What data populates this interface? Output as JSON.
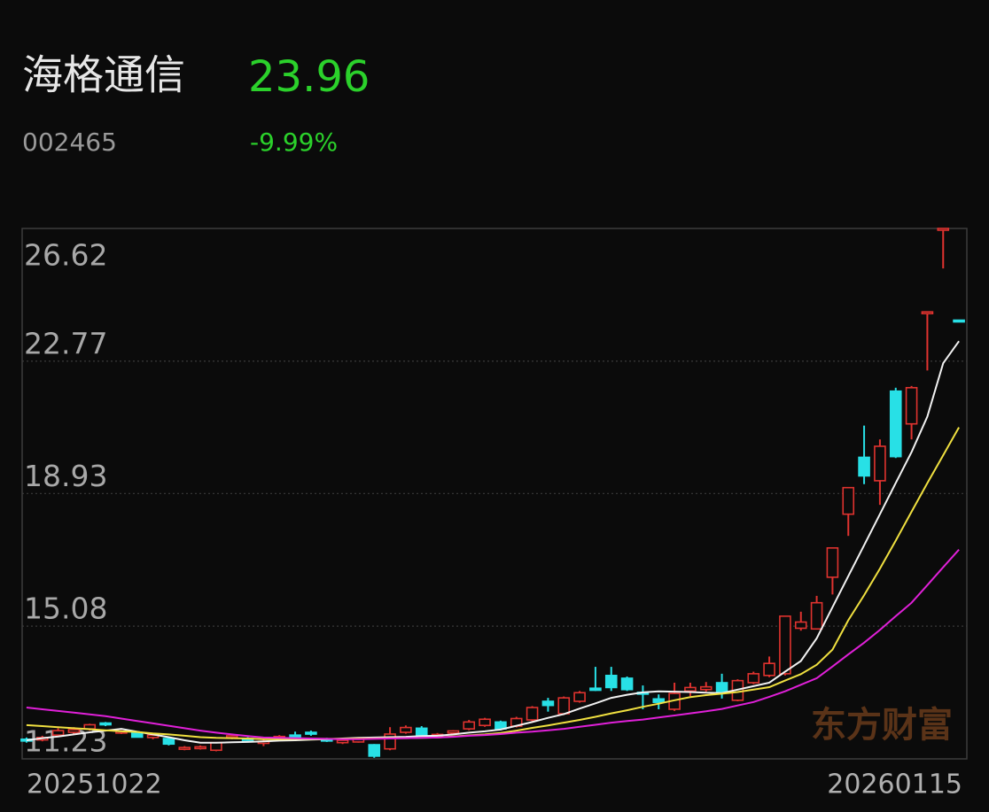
{
  "header": {
    "name": "海格通信",
    "price": "23.96",
    "code": "002465",
    "change": "-9.99%"
  },
  "watermark": "东方财富",
  "chart_data": {
    "type": "candlestick",
    "categories": [
      "20251022",
      null,
      null,
      null,
      null,
      null,
      null,
      null,
      null,
      null,
      null,
      null,
      null,
      null,
      null,
      null,
      null,
      null,
      null,
      null,
      null,
      null,
      null,
      null,
      null,
      null,
      null,
      null,
      null,
      null,
      null,
      null,
      null,
      null,
      null,
      null,
      null,
      null,
      null,
      null,
      null,
      null,
      null,
      null,
      null,
      null,
      null,
      null,
      null,
      null,
      null,
      null,
      null,
      null,
      null,
      null,
      null,
      null,
      null,
      "20260115"
    ],
    "open": [
      11.8,
      11.78,
      11.92,
      12.0,
      12.1,
      12.27,
      12.0,
      11.98,
      11.85,
      11.82,
      11.52,
      11.55,
      11.48,
      11.85,
      11.82,
      11.68,
      11.82,
      11.92,
      12.0,
      11.8,
      11.7,
      11.72,
      11.64,
      11.52,
      12.0,
      12.12,
      11.88,
      11.98,
      12.1,
      12.2,
      12.3,
      12.18,
      12.36,
      12.9,
      12.54,
      12.9,
      13.28,
      13.65,
      13.57,
      13.16,
      12.97,
      12.67,
      13.2,
      13.24,
      13.44,
      12.93,
      13.44,
      13.65,
      13.7,
      15.02,
      15.0,
      16.5,
      18.33,
      19.98,
      19.3,
      21.9,
      20.95,
      24.18,
      26.6,
      23.96
    ],
    "high": [
      11.85,
      11.9,
      12.12,
      12.15,
      12.25,
      12.3,
      12.06,
      12.02,
      11.97,
      11.85,
      11.6,
      11.62,
      11.72,
      11.95,
      11.86,
      11.8,
      11.92,
      12.02,
      12.05,
      11.84,
      11.8,
      11.82,
      11.66,
      12.15,
      12.2,
      12.18,
      11.98,
      12.06,
      12.36,
      12.42,
      12.34,
      12.45,
      12.76,
      13.0,
      13.04,
      13.2,
      13.9,
      13.9,
      13.62,
      13.36,
      13.1,
      13.44,
      13.44,
      13.46,
      13.7,
      13.54,
      13.76,
      14.2,
      15.37,
      15.5,
      15.96,
      17.35,
      19.1,
      20.9,
      20.5,
      22.0,
      22.05,
      24.2,
      26.62,
      23.96
    ],
    "low": [
      11.7,
      11.74,
      11.88,
      11.95,
      12.05,
      12.18,
      11.95,
      11.85,
      11.8,
      11.62,
      11.48,
      11.5,
      11.45,
      11.8,
      11.75,
      11.6,
      11.78,
      11.86,
      11.9,
      11.72,
      11.66,
      11.7,
      11.26,
      11.48,
      11.96,
      11.88,
      11.84,
      11.94,
      12.06,
      12.16,
      12.06,
      12.14,
      12.32,
      12.6,
      12.5,
      12.86,
      13.2,
      13.2,
      13.2,
      12.67,
      12.67,
      12.62,
      13.05,
      13.18,
      12.98,
      12.9,
      13.4,
      13.6,
      13.65,
      14.95,
      14.98,
      16.0,
      17.7,
      19.2,
      18.6,
      19.96,
      20.5,
      22.5,
      25.46,
      23.96
    ],
    "close": [
      11.75,
      11.85,
      12.05,
      12.08,
      12.22,
      12.22,
      12.03,
      11.86,
      11.92,
      11.66,
      11.56,
      11.58,
      11.7,
      11.9,
      11.78,
      11.74,
      11.88,
      11.88,
      11.95,
      11.76,
      11.77,
      11.8,
      11.31,
      11.95,
      12.14,
      11.9,
      11.94,
      12.04,
      12.3,
      12.38,
      12.1,
      12.4,
      12.72,
      12.78,
      13.0,
      13.15,
      13.22,
      13.3,
      13.24,
      13.12,
      12.87,
      13.13,
      13.3,
      13.32,
      13.18,
      13.5,
      13.7,
      14.0,
      15.37,
      15.2,
      15.76,
      17.35,
      19.1,
      19.44,
      20.3,
      20.0,
      22.0,
      24.2,
      26.62,
      23.96
    ],
    "up_color": "#e0332f",
    "down_color": "#28e0e6",
    "ma_lines": [
      {
        "color": "#f2f2f2",
        "values": [
          11.77,
          11.83,
          11.88,
          11.94,
          12.0,
          12.05,
          12.1,
          12.02,
          11.94,
          11.86,
          11.77,
          11.7,
          11.7,
          11.71,
          11.72,
          11.74,
          11.76,
          11.77,
          11.79,
          11.8,
          11.82,
          11.84,
          11.85,
          11.86,
          11.87,
          11.89,
          11.9,
          11.94,
          11.99,
          12.03,
          12.08,
          12.19,
          12.3,
          12.42,
          12.53,
          12.69,
          12.84,
          13.0,
          13.09,
          13.16,
          13.19,
          13.18,
          13.17,
          13.15,
          13.14,
          13.24,
          13.34,
          13.44,
          13.76,
          14.07,
          14.73,
          15.63,
          16.53,
          17.43,
          18.33,
          19.23,
          20.13,
          21.16,
          22.71,
          23.35
        ]
      },
      {
        "color": "#f0e040",
        "values": [
          12.21,
          12.18,
          12.15,
          12.12,
          12.09,
          12.06,
          12.03,
          12.01,
          11.97,
          11.94,
          11.9,
          11.86,
          11.84,
          11.83,
          11.82,
          11.8,
          11.8,
          11.81,
          11.81,
          11.81,
          11.81,
          11.82,
          11.82,
          11.83,
          11.83,
          11.84,
          11.85,
          11.88,
          11.91,
          11.94,
          11.98,
          12.05,
          12.13,
          12.2,
          12.28,
          12.36,
          12.45,
          12.55,
          12.64,
          12.74,
          12.83,
          12.93,
          13.02,
          13.08,
          13.12,
          13.17,
          13.24,
          13.31,
          13.5,
          13.69,
          13.96,
          14.4,
          15.25,
          15.98,
          16.75,
          17.56,
          18.4,
          19.23,
          20.04,
          20.85
        ]
      },
      {
        "color": "#e020d8",
        "values": [
          12.72,
          12.67,
          12.62,
          12.57,
          12.52,
          12.47,
          12.4,
          12.33,
          12.26,
          12.19,
          12.12,
          12.05,
          11.99,
          11.94,
          11.89,
          11.85,
          11.84,
          11.83,
          11.82,
          11.81,
          11.8,
          11.8,
          11.81,
          11.82,
          11.83,
          11.84,
          11.85,
          11.87,
          11.9,
          11.92,
          11.95,
          11.99,
          12.02,
          12.06,
          12.1,
          12.16,
          12.22,
          12.28,
          12.33,
          12.37,
          12.43,
          12.49,
          12.55,
          12.61,
          12.68,
          12.78,
          12.88,
          13.03,
          13.19,
          13.38,
          13.57,
          13.91,
          14.26,
          14.6,
          14.97,
          15.37,
          15.76,
          16.27,
          16.79,
          17.3
        ]
      }
    ],
    "ylim": [
      11.23,
      26.62
    ],
    "yticks": [
      11.23,
      15.08,
      18.93,
      22.77,
      26.62
    ],
    "grid": true
  }
}
